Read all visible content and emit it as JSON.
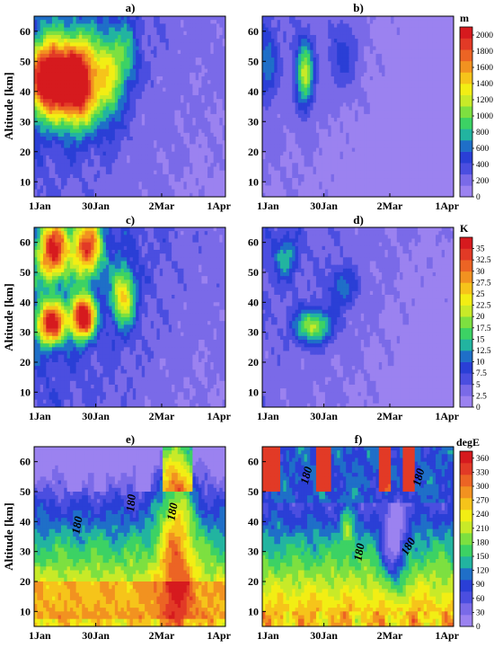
{
  "figure": {
    "panel_titles": [
      "a)",
      "b)",
      "c)",
      "d)",
      "e)",
      "f)"
    ],
    "ylabel": "Altitude [km]",
    "x_ticks": [
      "1Jan",
      "30Jan",
      "2Mar",
      "1Apr"
    ],
    "y_ticks": [
      "10",
      "20",
      "30",
      "40",
      "50",
      "60"
    ]
  },
  "colorbars": [
    {
      "unit": "m",
      "ticks": [
        "0",
        "200",
        "400",
        "600",
        "800",
        "1000",
        "1200",
        "1400",
        "1600",
        "1800",
        "2000"
      ]
    },
    {
      "unit": "K",
      "ticks": [
        "0",
        "2.5",
        "5",
        "7.5",
        "10",
        "12.5",
        "15",
        "17.5",
        "20",
        "22.5",
        "25",
        "27.5",
        "30",
        "32.5",
        "35"
      ]
    },
    {
      "unit": "degE",
      "ticks": [
        "0",
        "30",
        "60",
        "90",
        "120",
        "150",
        "180",
        "210",
        "240",
        "270",
        "300",
        "330",
        "360"
      ]
    }
  ],
  "palette": [
    "#9b82f0",
    "#7a6ae8",
    "#4b4ee0",
    "#2a3fd6",
    "#1f6fc8",
    "#22b4a0",
    "#3cd264",
    "#7de040",
    "#c8ea28",
    "#f2ee14",
    "#f6c41a",
    "#f29220",
    "#ec6424",
    "#e23a26",
    "#d61a1e"
  ],
  "chart_data": [
    {
      "type": "heatmap",
      "panel": "a)",
      "ylabel": "Altitude [km]",
      "x_range": [
        "1Jan",
        "1Apr"
      ],
      "ylim": [
        5,
        65
      ],
      "zlim": [
        0,
        2100
      ],
      "z_unit": "m",
      "blobs": [
        {
          "date": "8Jan",
          "alt_km": 44,
          "sdx_days": 7,
          "sdy_km": 9,
          "value": 2000
        },
        {
          "date": "22Jan",
          "alt_km": 43,
          "sdx_days": 6,
          "sdy_km": 10,
          "value": 1950
        },
        {
          "date": "5Feb",
          "alt_km": 45,
          "sdx_days": 5,
          "sdy_km": 11,
          "value": 900
        },
        {
          "date": "14Feb",
          "alt_km": 52,
          "sdx_days": 4,
          "sdy_km": 8,
          "value": 450
        }
      ]
    },
    {
      "type": "heatmap",
      "panel": "b)",
      "ylabel": "",
      "x_range": [
        "1Jan",
        "1Apr"
      ],
      "ylim": [
        5,
        65
      ],
      "zlim": [
        0,
        2100
      ],
      "z_unit": "m",
      "blobs": [
        {
          "date": "21Jan",
          "alt_km": 46,
          "sdx_days": 3,
          "sdy_km": 8,
          "value": 1000
        },
        {
          "date": "3Jan",
          "alt_km": 50,
          "sdx_days": 4,
          "sdy_km": 9,
          "value": 450
        },
        {
          "date": "8Feb",
          "alt_km": 52,
          "sdx_days": 5,
          "sdy_km": 8,
          "value": 350
        }
      ]
    },
    {
      "type": "heatmap",
      "panel": "c)",
      "ylabel": "Altitude [km]",
      "x_range": [
        "1Jan",
        "1Apr"
      ],
      "ylim": [
        5,
        65
      ],
      "zlim": [
        0,
        37.5
      ],
      "z_unit": "K",
      "blobs": [
        {
          "date": "9Jan",
          "alt_km": 33,
          "sdx_days": 5,
          "sdy_km": 5,
          "value": 30
        },
        {
          "date": "24Jan",
          "alt_km": 35,
          "sdx_days": 4,
          "sdy_km": 5,
          "value": 35
        },
        {
          "date": "10Jan",
          "alt_km": 57,
          "sdx_days": 5,
          "sdy_km": 7,
          "value": 27
        },
        {
          "date": "26Jan",
          "alt_km": 58,
          "sdx_days": 5,
          "sdy_km": 7,
          "value": 25
        },
        {
          "date": "12Feb",
          "alt_km": 42,
          "sdx_days": 4,
          "sdy_km": 7,
          "value": 20
        }
      ]
    },
    {
      "type": "heatmap",
      "panel": "d)",
      "ylabel": "",
      "x_range": [
        "1Jan",
        "1Apr"
      ],
      "ylim": [
        5,
        65
      ],
      "zlim": [
        0,
        37.5
      ],
      "z_unit": "K",
      "blobs": [
        {
          "date": "25Jan",
          "alt_km": 32,
          "sdx_days": 6,
          "sdy_km": 4,
          "value": 17
        },
        {
          "date": "12Jan",
          "alt_km": 55,
          "sdx_days": 4,
          "sdy_km": 5,
          "value": 9
        },
        {
          "date": "8Feb",
          "alt_km": 45,
          "sdx_days": 5,
          "sdy_km": 5,
          "value": 8
        }
      ]
    },
    {
      "type": "heatmap",
      "panel": "e)",
      "ylabel": "Altitude [km]",
      "x_range": [
        "1Jan",
        "1Apr"
      ],
      "ylim": [
        5,
        65
      ],
      "zlim": [
        0,
        375
      ],
      "z_unit": "degE",
      "contour_labels": [
        "180",
        "180",
        "180"
      ],
      "features": [
        {
          "kind": "low_band",
          "alt_km": 12,
          "value": 310
        },
        {
          "kind": "ridge",
          "date": "8Mar",
          "alt_km": 30,
          "value": 320
        },
        {
          "kind": "high_top",
          "alt_km": 58,
          "value": 150
        }
      ]
    },
    {
      "type": "heatmap",
      "panel": "f)",
      "ylabel": "",
      "x_range": [
        "1Jan",
        "1Apr"
      ],
      "ylim": [
        5,
        65
      ],
      "zlim": [
        0,
        375
      ],
      "z_unit": "degE",
      "contour_labels": [
        "180",
        "180",
        "180",
        "180"
      ],
      "features": [
        {
          "kind": "low_band",
          "alt_km": 14,
          "value": 300
        },
        {
          "kind": "trough",
          "date": "3Mar",
          "alt_km": 30,
          "value": 60
        },
        {
          "kind": "high_top",
          "alt_km": 60,
          "value": 340
        }
      ]
    }
  ]
}
